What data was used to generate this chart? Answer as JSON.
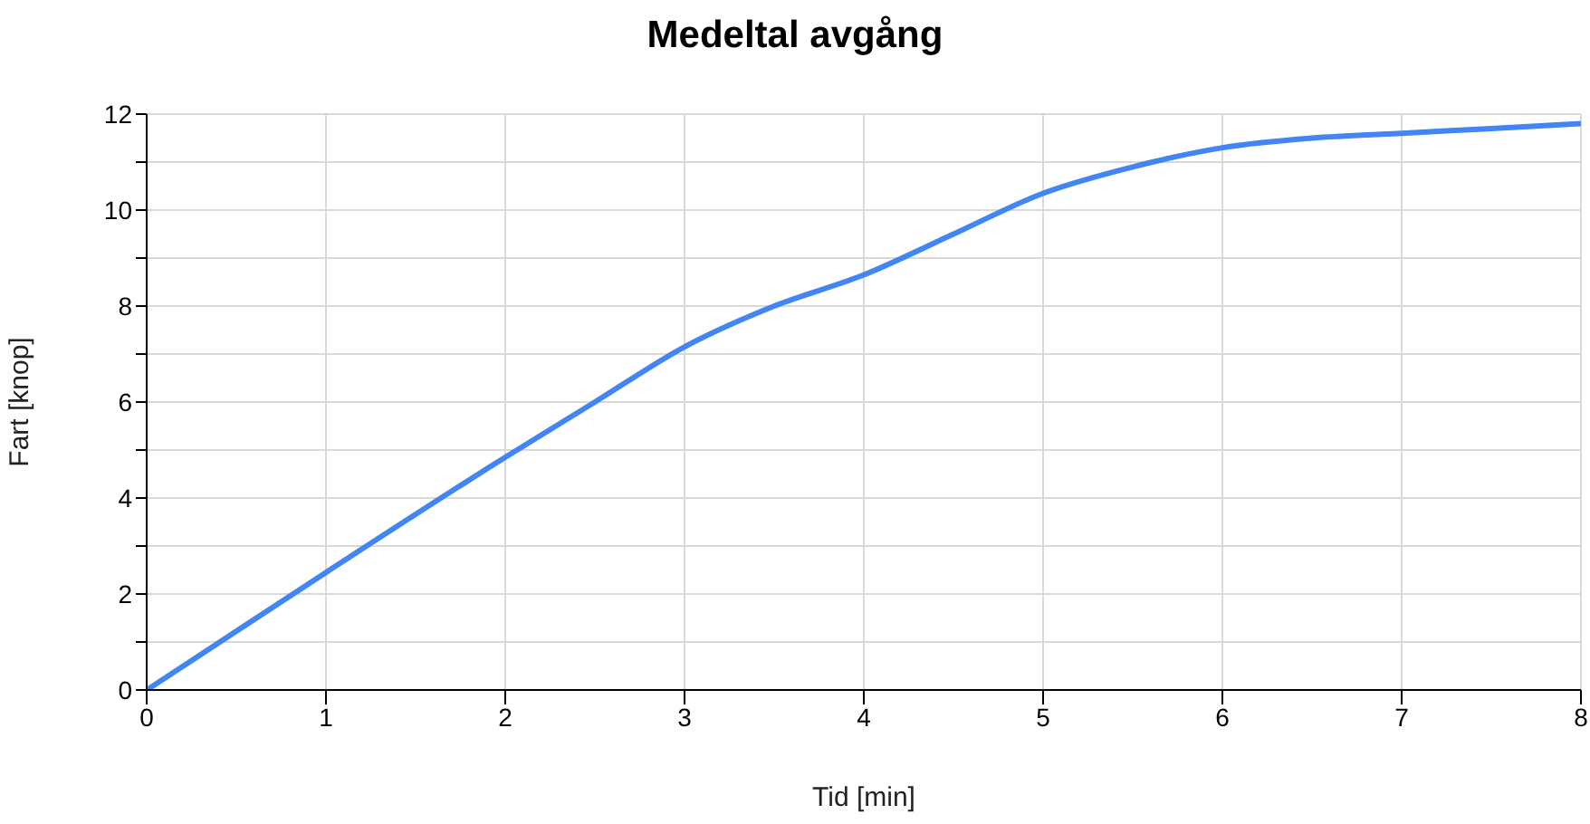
{
  "chart_data": {
    "type": "line",
    "title": "Medeltal avgång",
    "xlabel": "Tid [min]",
    "ylabel": "Fart [knop]",
    "x": [
      0,
      1,
      2,
      2.5,
      3,
      3.5,
      4,
      4.5,
      5,
      5.5,
      6,
      6.5,
      7,
      7.5,
      8
    ],
    "series": [
      {
        "color": "#4285f4",
        "values": [
          0,
          2.45,
          4.85,
          6.0,
          7.15,
          8.0,
          8.65,
          9.5,
          10.35,
          10.9,
          11.3,
          11.5,
          11.6,
          11.7,
          11.8
        ]
      }
    ],
    "xlim": [
      0,
      8
    ],
    "xticks": [
      0,
      1,
      2,
      3,
      4,
      5,
      6,
      7,
      8
    ],
    "ylim": [
      0,
      12
    ],
    "yticks": [
      0,
      {
        "value": 1,
        "label": null
      },
      2,
      {
        "value": 3,
        "label": null
      },
      4,
      {
        "value": 5,
        "label": null
      },
      6,
      {
        "value": 7,
        "label": null
      },
      8,
      {
        "value": 9,
        "label": null
      },
      10,
      {
        "value": 11,
        "label": null
      },
      12
    ],
    "grid": true,
    "marker": "none",
    "line_style": "solid",
    "legend": false
  }
}
